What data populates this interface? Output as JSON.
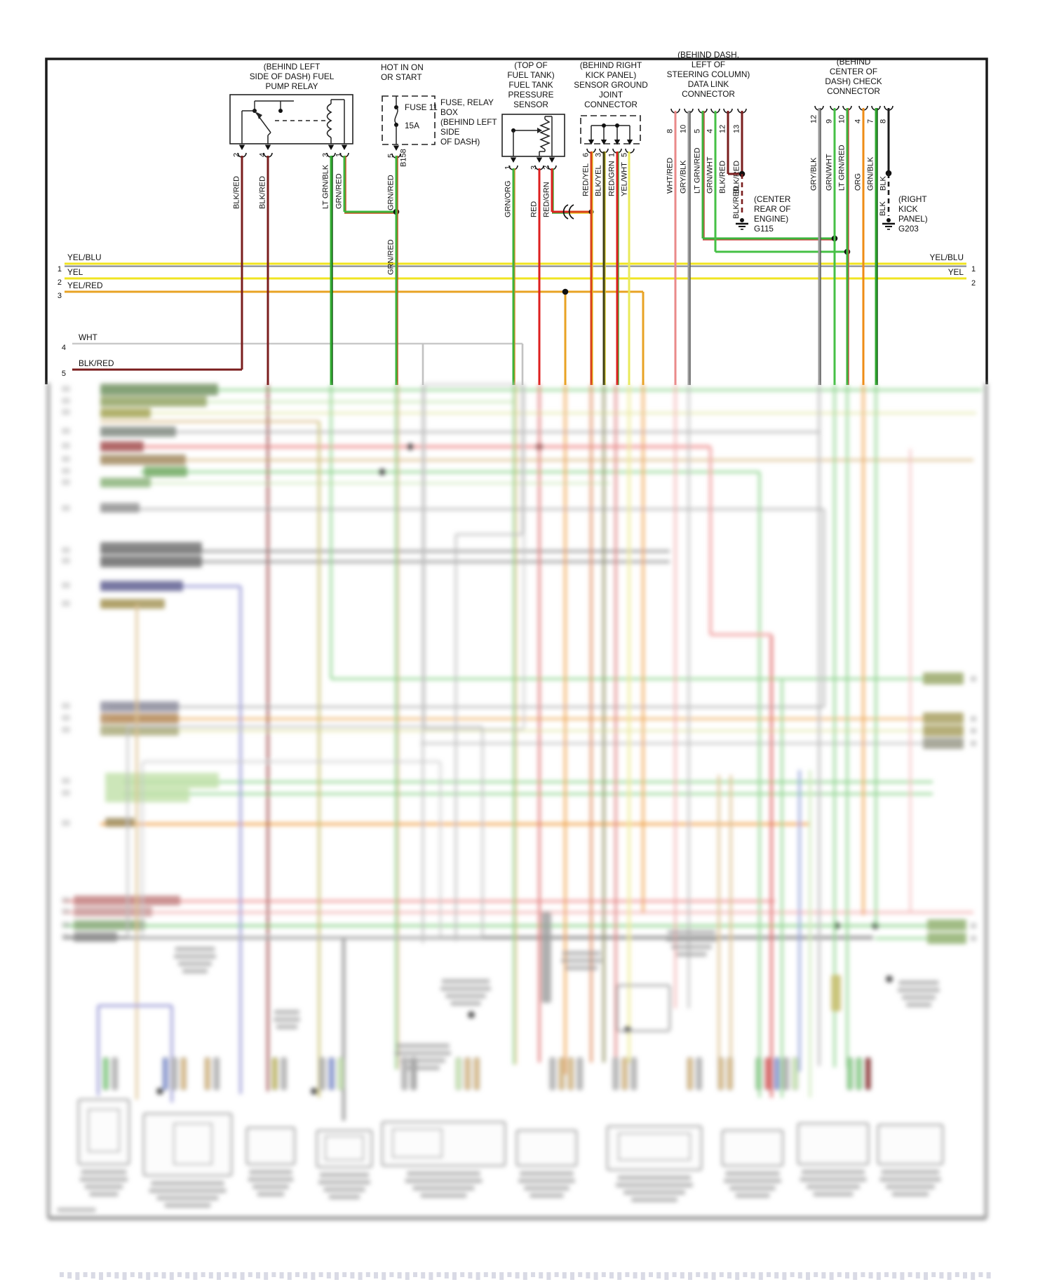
{
  "colors": {
    "yellow": "#f0e422",
    "yellow_blue_stripe": "#8a8f9a",
    "yellow_red": "#e8a324",
    "white_wire": "#c9c9c9",
    "black_red": "#7a1d1d",
    "green": "#3cb43c",
    "red": "#dd1f1f",
    "orange": "#ef8c16",
    "black": "#1c1c1c",
    "gray": "#9b9b9b",
    "border": "#1a1a1a"
  },
  "relay": {
    "caption": [
      "(BEHIND LEFT",
      "SIDE OF DASH) FUEL",
      "PUMP RELAY"
    ],
    "pins": [
      {
        "wire": "BLK/RED",
        "pin": "2"
      },
      {
        "wire": "BLK/RED",
        "pin": "4"
      },
      {
        "wire": "LT GRN/BLK",
        "pin": "3"
      },
      {
        "wire": "GRN/RED",
        "pin": "1"
      }
    ]
  },
  "fuse": {
    "power": [
      "HOT IN ON",
      "OR START"
    ],
    "name": "FUSE 11",
    "rating": "15A",
    "caption": [
      "FUSE, RELAY",
      "BOX",
      "(BEHIND LEFT",
      "SIDE",
      "OF DASH)"
    ],
    "pin": "5",
    "wire": "GRN/RED",
    "connector_id": "B158",
    "branch_wire": "GRN/RED",
    "wire_below": "GRN/RED"
  },
  "sensor": {
    "caption": [
      "(TOP OF",
      "FUEL TANK)",
      "FUEL TANK",
      "PRESSURE",
      "SENSOR"
    ],
    "pins": [
      {
        "wire": "GRN/ORG",
        "pin": "1"
      },
      {
        "wire": "RED",
        "pin": "3"
      },
      {
        "wire": "RED/GRN",
        "pin": "2"
      }
    ]
  },
  "joint": {
    "caption": [
      "(BEHIND RIGHT",
      "KICK PANEL)",
      "SENSOR GROUND",
      "JOINT",
      "CONNECTOR"
    ],
    "pins": [
      {
        "wire": "RED/YEL",
        "pin": "6"
      },
      {
        "wire": "BLK/YEL",
        "pin": "3"
      },
      {
        "wire": "RED/GRN",
        "pin": "1"
      },
      {
        "wire": "YEL/WHT",
        "pin": "5"
      }
    ]
  },
  "dlc": {
    "caption": [
      "(BEHIND DASH,",
      "LEFT OF",
      "STEERING COLUMN)",
      "DATA LINK",
      "CONNECTOR"
    ],
    "pins": [
      {
        "wire": "WHT/RED",
        "pin": "8"
      },
      {
        "wire": "GRY/BLK",
        "pin": "10"
      },
      {
        "wire": "LT GRN/RED",
        "pin": "5"
      },
      {
        "wire": "GRN/WHT",
        "pin": "4"
      },
      {
        "wire": "BLK/RED",
        "pin": "12"
      },
      {
        "wire": "BLK/RED",
        "pin": "13"
      }
    ],
    "ground_wire": "BLK/RED",
    "ground": {
      "id": "G115",
      "caption": [
        "(CENTER",
        "REAR OF",
        "ENGINE)"
      ]
    }
  },
  "check": {
    "caption": [
      "(BEHIND",
      "CENTER OF",
      "DASH) CHECK",
      "CONNECTOR"
    ],
    "pins": [
      {
        "wire": "GRY/BLK",
        "pin": "12"
      },
      {
        "wire": "GRN/WHT",
        "pin": "9"
      },
      {
        "wire": "LT GRN/RED",
        "pin": "10"
      },
      {
        "wire": "ORG",
        "pin": "4"
      },
      {
        "wire": "GRN/BLK",
        "pin": "7"
      },
      {
        "wire": "BLK",
        "pin": "8"
      }
    ],
    "ground_wire": "BLK",
    "ground": {
      "id": "G203",
      "caption": [
        "(RIGHT",
        "KICK",
        "PANEL)"
      ]
    }
  },
  "bus": {
    "left": [
      {
        "num": "1",
        "label": "YEL/BLU"
      },
      {
        "num": "2",
        "label": "YEL"
      },
      {
        "num": "3",
        "label": "YEL/RED"
      },
      {
        "num": "4",
        "label": "WHT"
      },
      {
        "num": "5",
        "label": "BLK/RED"
      }
    ],
    "right": [
      {
        "num": "1",
        "label": "YEL/BLU"
      },
      {
        "num": "2",
        "label": "YEL"
      }
    ]
  }
}
